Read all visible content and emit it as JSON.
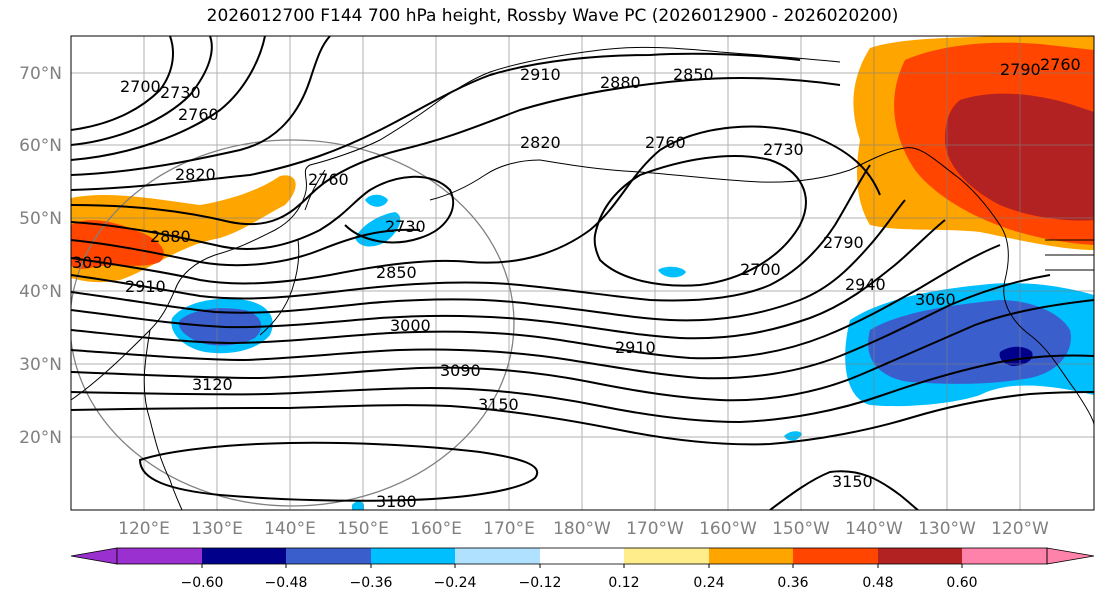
{
  "title": "2026012700 F144 700 hPa height, Rossby Wave PC (2026012900 - 2026020200)",
  "map": {
    "lat_labels": [
      "70°N",
      "60°N",
      "50°N",
      "40°N",
      "30°N",
      "20°N"
    ],
    "lon_labels": [
      "120°E",
      "130°E",
      "140°E",
      "150°E",
      "160°E",
      "170°E",
      "180°W",
      "170°W",
      "160°W",
      "150°W",
      "140°W",
      "130°W",
      "120°W"
    ],
    "contour_labels": [
      "2910",
      "2880",
      "2850",
      "2700",
      "2730",
      "2760",
      "2820",
      "2760",
      "2730",
      "2760",
      "2730",
      "2820",
      "2880",
      "2850",
      "3000",
      "2910",
      "3090",
      "3120",
      "3150",
      "3180",
      "2700",
      "2790",
      "2940",
      "3060",
      "2790",
      "2760",
      "3150",
      "2910",
      "3030"
    ],
    "contour_line_color": "#000000",
    "grid_color": "#808080",
    "coast_color": "#000000"
  },
  "colorbar": {
    "ticks": [
      "−0.60",
      "−0.48",
      "−0.36",
      "−0.24",
      "−0.12",
      "0.12",
      "0.24",
      "0.36",
      "0.48",
      "0.60"
    ],
    "colors": [
      "#9b30d0",
      "#00008b",
      "#3a5fcd",
      "#00bfff",
      "#b0e2ff",
      "#ffffff",
      "#ffec8b",
      "#ffa500",
      "#ff4500",
      "#b22222",
      "#ff82ab"
    ]
  }
}
